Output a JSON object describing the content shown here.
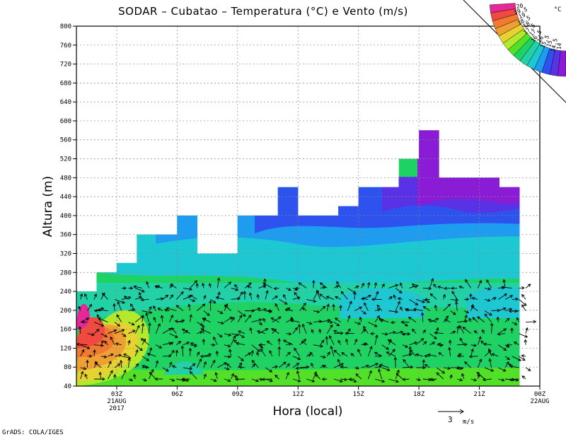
{
  "chart_data": {
    "type": "heatmap",
    "title": "SODAR – Cubatao – Temperatura (°C) e Vento (m/s)",
    "xlabel": "Hora (local)",
    "ylabel": "Altura (m)",
    "x_ticks": [
      {
        "hour": 3,
        "label": "03Z",
        "sub1": "21AUG",
        "sub2": "2017"
      },
      {
        "hour": 6,
        "label": "06Z",
        "sub1": "",
        "sub2": ""
      },
      {
        "hour": 9,
        "label": "09Z",
        "sub1": "",
        "sub2": ""
      },
      {
        "hour": 12,
        "label": "12Z",
        "sub1": "",
        "sub2": ""
      },
      {
        "hour": 15,
        "label": "15Z",
        "sub1": "",
        "sub2": ""
      },
      {
        "hour": 18,
        "label": "18Z",
        "sub1": "",
        "sub2": ""
      },
      {
        "hour": 21,
        "label": "21Z",
        "sub1": "",
        "sub2": ""
      },
      {
        "hour": 24,
        "label": "00Z",
        "sub1": "22AUG",
        "sub2": ""
      }
    ],
    "xlim": [
      1.0,
      24.0
    ],
    "ylim": [
      40,
      800
    ],
    "y_ticks": [
      40,
      80,
      120,
      160,
      200,
      240,
      280,
      320,
      360,
      400,
      440,
      480,
      520,
      560,
      600,
      640,
      680,
      720,
      760,
      800
    ],
    "grid": true,
    "data_top": [
      [
        1.0,
        240
      ],
      [
        2.0,
        240
      ],
      [
        2.0,
        280
      ],
      [
        3.0,
        280
      ],
      [
        3.0,
        300
      ],
      [
        4.0,
        300
      ],
      [
        4.0,
        360
      ],
      [
        5.0,
        360
      ],
      [
        6.0,
        360
      ],
      [
        6.0,
        400
      ],
      [
        7.0,
        400
      ],
      [
        7.0,
        320
      ],
      [
        9.0,
        320
      ],
      [
        9.0,
        400
      ],
      [
        11.0,
        400
      ],
      [
        11.0,
        460
      ],
      [
        12.0,
        460
      ],
      [
        12.0,
        400
      ],
      [
        14.0,
        400
      ],
      [
        14.0,
        420
      ],
      [
        15.0,
        420
      ],
      [
        15.0,
        460
      ],
      [
        17.0,
        460
      ],
      [
        17.0,
        520
      ],
      [
        18.0,
        520
      ],
      [
        18.0,
        580
      ],
      [
        19.0,
        580
      ],
      [
        19.0,
        480
      ],
      [
        22.0,
        480
      ],
      [
        22.0,
        460
      ],
      [
        23.0,
        460
      ],
      [
        23.0,
        460
      ]
    ],
    "temperature_levels": [
      {
        "level": "14",
        "color": "#8a1cd6"
      },
      {
        "level": "14.5",
        "color": "#5a32e6"
      },
      {
        "level": "15",
        "color": "#2e52ee"
      },
      {
        "level": "15.5",
        "color": "#1e9cf0"
      },
      {
        "level": "16",
        "color": "#1ec8d2"
      },
      {
        "level": "16.5",
        "color": "#22d2a6"
      },
      {
        "level": "17",
        "color": "#1ed264"
      },
      {
        "level": "17.5",
        "color": "#52e028"
      },
      {
        "level": "18",
        "color": "#b4e82c"
      },
      {
        "level": "18.5",
        "color": "#e6d232"
      },
      {
        "level": "19",
        "color": "#f0a032"
      },
      {
        "level": "19.5",
        "color": "#f07a30"
      },
      {
        "level": "20",
        "color": "#f04a40"
      },
      {
        "level": "",
        "color": "#e62896"
      }
    ],
    "temperature_unit": "°C",
    "wind_reference": {
      "value": "3",
      "unit": "m/s"
    }
  },
  "footer": {
    "credit": "GrADS: COLA/IGES"
  }
}
